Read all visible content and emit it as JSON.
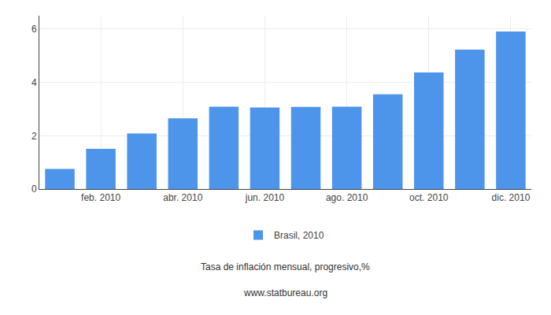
{
  "chart_data": {
    "type": "bar",
    "subtitle": "Tasa de inflación mensual, progresivo,%",
    "annotations": [
      "www.statbureau.org"
    ],
    "categories": [
      null,
      "feb. 2010",
      null,
      "abr. 2010",
      null,
      "jun. 2010",
      null,
      "ago. 2010",
      null,
      "oct. 2010",
      null,
      "dic. 2010"
    ],
    "series": [
      {
        "name": "Brasil, 2010",
        "color": "#4d94eb",
        "values": [
          0.75,
          1.51,
          2.08,
          2.65,
          3.09,
          3.06,
          3.08,
          3.09,
          3.55,
          4.37,
          5.23,
          5.91
        ]
      }
    ],
    "ylim": [
      0,
      6.5
    ],
    "yticks": [
      0,
      2,
      4,
      6
    ],
    "grid": true,
    "legend": "bottom"
  }
}
